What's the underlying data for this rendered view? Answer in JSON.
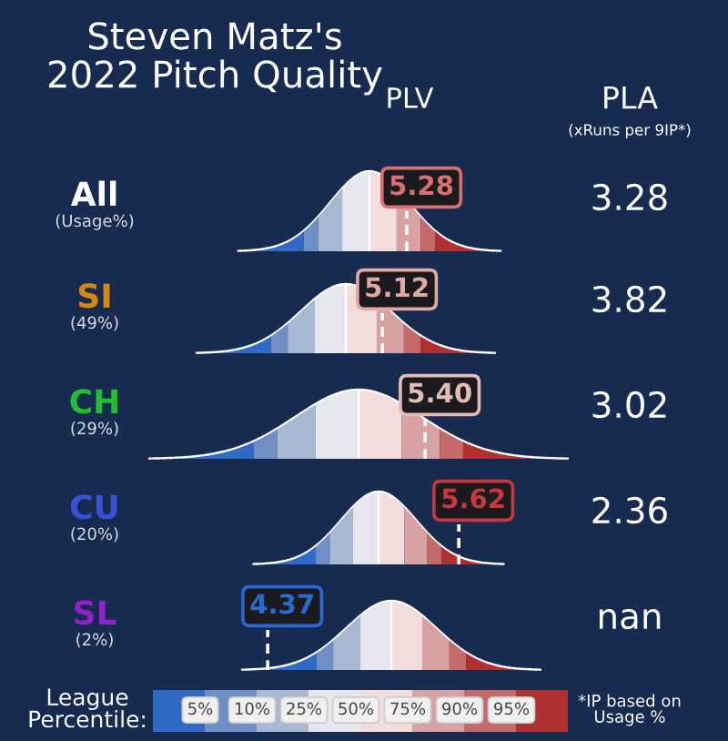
{
  "chart_data": {
    "type": "other",
    "title": "Steven Matz's\n2022 Pitch Quality",
    "categories": [
      "All",
      "SI",
      "CH",
      "CU",
      "SL"
    ],
    "colors": [
      "#ffffff",
      "#d4880c",
      "#1fbf2f",
      "#3b4fd8",
      "#8e22c8"
    ],
    "legend_title": "League\nPercentile:",
    "annotations": [
      "(xRuns per 9IP*)",
      "*IP based on\nUsage %",
      "5%",
      "10%",
      "25%",
      "50%",
      "75%",
      "90%",
      "95%",
      "(Usage%)",
      "(49%)",
      "(29%)",
      "(20%)",
      "(2%)",
      "nan"
    ],
    "data_labels": true,
    "series": [
      {
        "name": "PLV",
        "values": [
          5.28,
          5.12,
          5.4,
          5.62,
          4.37
        ],
        "value_labels": [
          "5.28",
          "5.12",
          "5.40",
          "5.62",
          "4.37"
        ],
        "colors": [
          "#d87070",
          "#e0aaa2",
          "#e3bdb5",
          "#c83838",
          "#2a6ad0"
        ]
      },
      {
        "name": "PLA",
        "values": [
          3.28,
          3.82,
          3.02,
          2.36,
          null
        ]
      }
    ]
  }
}
